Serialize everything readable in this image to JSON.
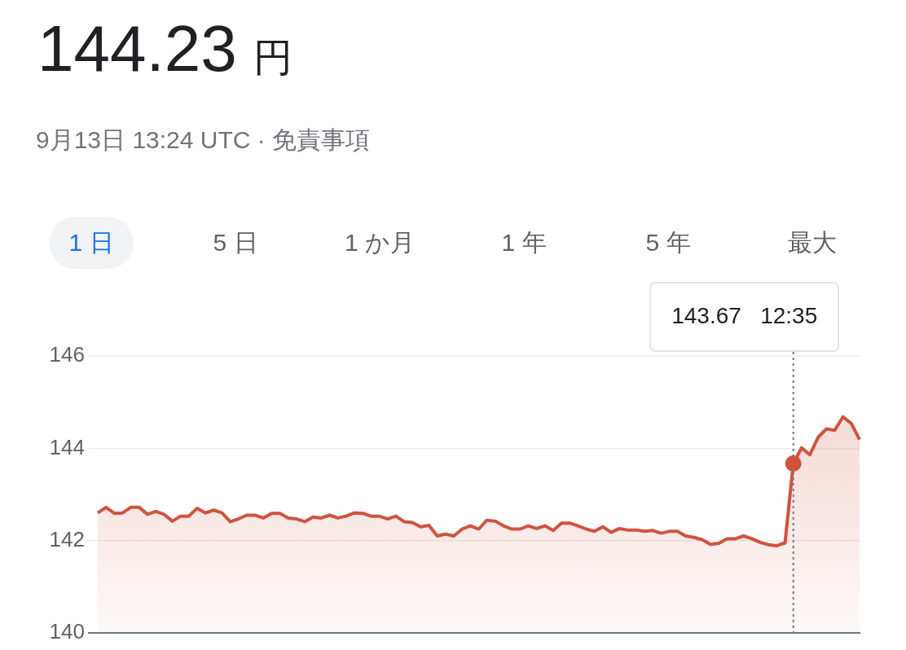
{
  "chart_data": {
    "type": "area",
    "title": "144.23 円",
    "subtitle": "9月13日 13:24 UTC · 免責事項",
    "annotations": [
      "143.67 12:35",
      "1 日",
      "5 日",
      "1 か月",
      "1 年",
      "5 年",
      "最大"
    ],
    "categories": [
      null,
      null,
      null,
      null,
      null,
      null,
      null,
      null,
      null,
      null,
      null,
      null,
      null,
      null,
      null,
      null,
      null,
      null,
      null,
      null,
      null,
      null,
      null,
      null,
      null,
      null,
      null,
      null,
      null,
      null,
      null,
      null,
      null,
      null,
      null,
      null,
      null,
      null,
      null,
      null,
      null,
      null,
      null,
      null,
      null,
      null,
      null,
      null,
      null,
      null,
      null,
      null,
      null,
      null,
      null,
      null,
      null,
      null,
      null,
      null,
      null,
      null,
      null,
      null,
      null,
      null,
      null,
      null,
      null,
      null,
      null,
      null,
      null,
      null,
      null,
      null,
      null,
      null,
      null,
      null,
      null,
      null,
      null,
      null,
      null,
      null,
      null,
      null,
      null,
      null,
      null,
      null,
      null
    ],
    "series": [
      {
        "color": "#d0533f",
        "values": [
          142.6,
          142.72,
          142.59,
          142.6,
          142.72,
          142.72,
          142.57,
          142.63,
          142.57,
          142.42,
          142.53,
          142.53,
          142.7,
          142.6,
          142.66,
          142.6,
          142.41,
          142.47,
          142.55,
          142.55,
          142.49,
          142.59,
          142.59,
          142.49,
          142.47,
          142.41,
          142.51,
          142.49,
          142.55,
          142.49,
          142.53,
          142.6,
          142.59,
          142.53,
          142.53,
          142.47,
          142.53,
          142.41,
          142.39,
          142.3,
          142.33,
          142.1,
          142.14,
          142.1,
          142.25,
          142.32,
          142.25,
          142.44,
          142.42,
          142.32,
          142.25,
          142.25,
          142.32,
          142.26,
          142.32,
          142.22,
          142.38,
          142.38,
          142.32,
          142.25,
          142.2,
          142.3,
          142.18,
          142.26,
          142.23,
          142.23,
          142.2,
          142.22,
          142.16,
          142.2,
          142.2,
          142.1,
          142.07,
          142.02,
          141.92,
          141.94,
          142.04,
          142.04,
          142.1,
          142.04,
          141.96,
          141.91,
          141.89,
          141.95,
          143.67,
          144.01,
          143.86,
          144.24,
          144.42,
          144.39,
          144.68,
          144.54,
          144.19
        ]
      }
    ],
    "ylim": [
      140,
      146
    ],
    "yticks": [
      140,
      142,
      144,
      146
    ],
    "grid": "y"
  }
}
